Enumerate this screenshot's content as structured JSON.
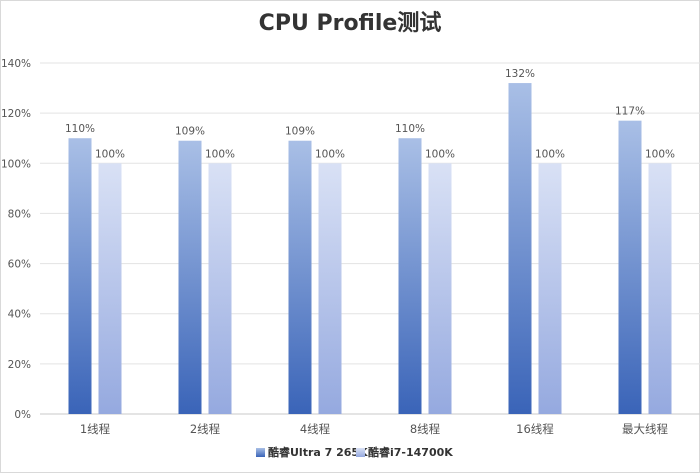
{
  "colors": {
    "series1_top": "#a9bfe6",
    "series1_bottom": "#3a64b8",
    "series2_top": "#d9e1f5",
    "series2_bottom": "#95a9df",
    "grid": "#e3e3e3",
    "axis": "#c9c9c9",
    "text": "#555555",
    "title": "#333333"
  },
  "chart_data": {
    "type": "bar",
    "title": "CPU Profile测试",
    "xlabel": "",
    "ylabel": "",
    "categories": [
      "1线程",
      "2线程",
      "4线程",
      "8线程",
      "16线程",
      "最大线程"
    ],
    "series": [
      {
        "name": "酷睿Ultra 7 265K",
        "values": [
          110,
          109,
          109,
          110,
          132,
          117
        ]
      },
      {
        "name": "酷睿i7-14700K",
        "values": [
          100,
          100,
          100,
          100,
          100,
          100
        ]
      }
    ],
    "data_labels": [
      [
        "110%",
        "109%",
        "109%",
        "110%",
        "132%",
        "117%"
      ],
      [
        "100%",
        "100%",
        "100%",
        "100%",
        "100%",
        "100%"
      ]
    ],
    "ylim": [
      0,
      140
    ],
    "yticks": [
      0,
      20,
      40,
      60,
      80,
      100,
      120,
      140
    ],
    "ytick_labels": [
      "0%",
      "20%",
      "40%",
      "60%",
      "80%",
      "100%",
      "120%",
      "140%"
    ],
    "grid": true,
    "legend_position": "bottom"
  }
}
